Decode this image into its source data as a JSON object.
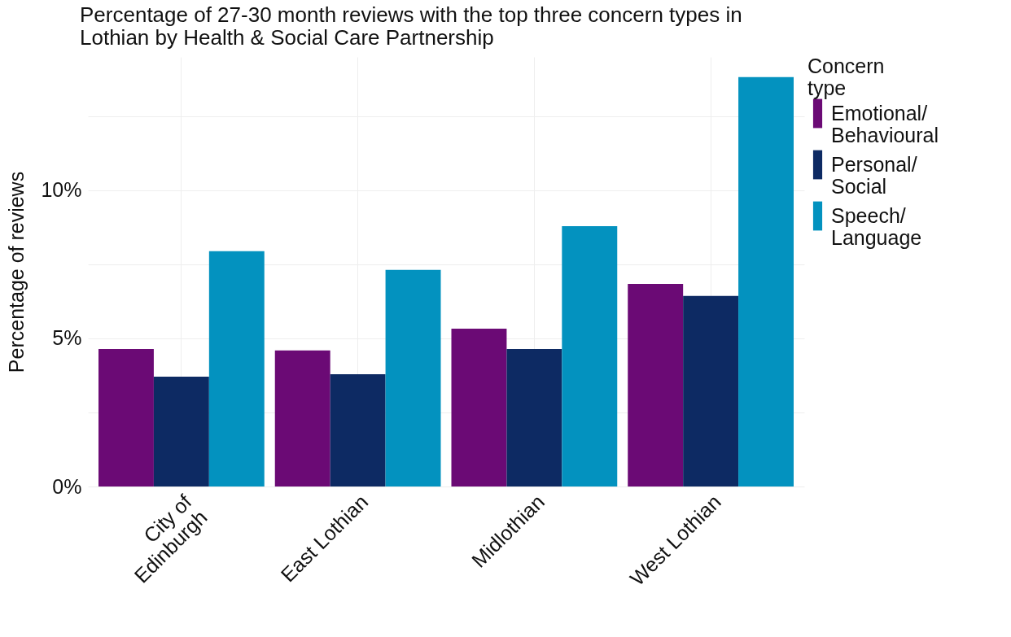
{
  "chart_data": {
    "type": "bar",
    "title": "Percentage of 27-30 month reviews with the top three concern types in Lothian by Health & Social Care Partnership",
    "ylabel": "Percentage of reviews",
    "legend_title": "Concern type",
    "categories": [
      "City of Edinburgh",
      "East Lothian",
      "Midlothian",
      "West Lothian"
    ],
    "series": [
      {
        "name": "Emotional/ Behavioural",
        "color": "#6b0a75",
        "values": [
          4.64,
          4.59,
          5.33,
          6.84
        ]
      },
      {
        "name": "Personal/ Social",
        "color": "#0d2a63",
        "values": [
          3.71,
          3.79,
          4.64,
          6.43
        ]
      },
      {
        "name": "Speech/ Language",
        "color": "#0392bf",
        "values": [
          7.94,
          7.31,
          8.79,
          13.82
        ]
      }
    ],
    "ylim": [
      0,
      14.5
    ],
    "yticks": [
      {
        "value": 0,
        "label": "0%"
      },
      {
        "value": 2.5,
        "label": null
      },
      {
        "value": 5,
        "label": "5%"
      },
      {
        "value": 7.5,
        "label": null
      },
      {
        "value": 10,
        "label": "10%"
      },
      {
        "value": 12.5,
        "label": null
      }
    ],
    "grid": true,
    "legend": "right"
  }
}
